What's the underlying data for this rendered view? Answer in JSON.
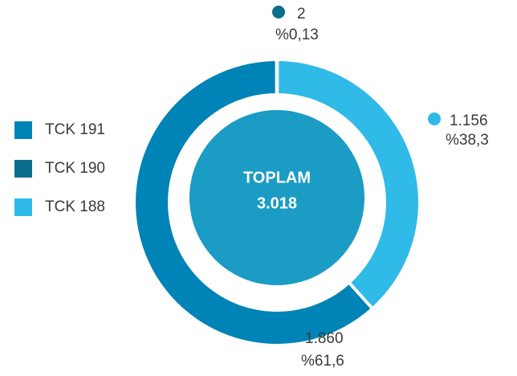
{
  "chart_data": {
    "type": "donut",
    "categories": [
      "TCK 191",
      "TCK 190",
      "TCK 188"
    ],
    "values": [
      1860,
      2,
      1156
    ],
    "value_labels": [
      "1.860",
      "2",
      "1.156"
    ],
    "percents": [
      61.6,
      0.13,
      38.3
    ],
    "percent_labels": [
      "%61,6",
      "%0,13",
      "%38,3"
    ],
    "colors": [
      "#0083b6",
      "#0b6e8c",
      "#2fbae8"
    ],
    "center_title": "TOPLAM",
    "total": {
      "value": 3018,
      "label": "3.018"
    },
    "center_color": "#1b9cc4",
    "legend": "left"
  }
}
